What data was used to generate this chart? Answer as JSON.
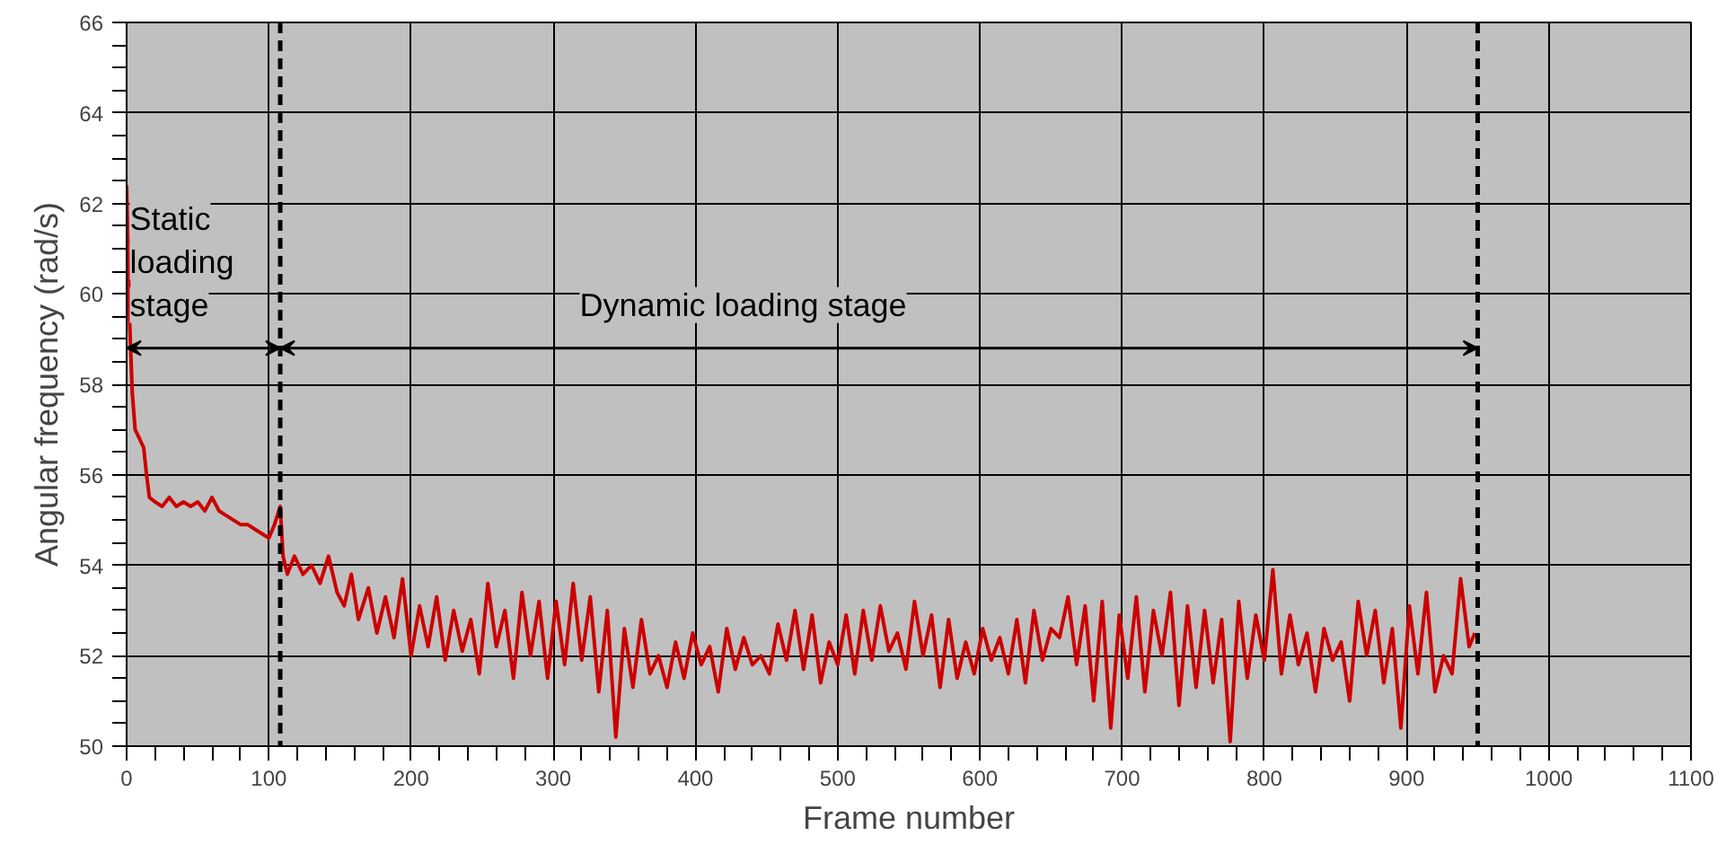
{
  "chart_data": {
    "type": "line",
    "xlabel": "Frame number",
    "ylabel": "Angular frequency (rad/s)",
    "xlim": [
      0,
      1100
    ],
    "ylim": [
      50,
      66
    ],
    "xticks": [
      0,
      100,
      200,
      300,
      400,
      500,
      600,
      700,
      800,
      900,
      1000,
      1100
    ],
    "yticks": [
      50,
      52,
      54,
      56,
      58,
      60,
      62,
      64,
      66
    ],
    "grid": true,
    "marker": "none",
    "line_style": "solid",
    "series": [
      {
        "color": "#cc0000",
        "x": [
          0,
          2,
          4,
          6,
          9,
          12,
          14,
          16,
          20,
          25,
          30,
          35,
          40,
          45,
          50,
          55,
          60,
          65,
          70,
          75,
          80,
          85,
          90,
          95,
          100,
          104,
          108,
          110,
          113,
          118,
          124,
          130,
          136,
          142,
          148,
          153,
          158,
          163,
          170,
          176,
          182,
          188,
          194,
          200,
          206,
          212,
          218,
          224,
          230,
          236,
          242,
          248,
          254,
          260,
          266,
          272,
          278,
          284,
          290,
          296,
          302,
          308,
          314,
          320,
          326,
          332,
          338,
          344,
          350,
          356,
          362,
          368,
          374,
          380,
          386,
          392,
          398,
          404,
          410,
          416,
          422,
          428,
          434,
          440,
          446,
          452,
          458,
          464,
          470,
          476,
          482,
          488,
          494,
          500,
          506,
          512,
          518,
          524,
          530,
          536,
          542,
          548,
          554,
          560,
          566,
          572,
          578,
          584,
          590,
          596,
          602,
          608,
          614,
          620,
          626,
          632,
          638,
          644,
          650,
          656,
          662,
          668,
          674,
          680,
          686,
          692,
          698,
          704,
          710,
          716,
          722,
          728,
          734,
          740,
          746,
          752,
          758,
          764,
          770,
          776,
          782,
          788,
          794,
          800,
          806,
          812,
          818,
          824,
          830,
          836,
          842,
          848,
          854,
          860,
          866,
          872,
          878,
          884,
          890,
          896,
          902,
          908,
          914,
          920,
          926,
          932,
          938,
          944,
          948
        ],
        "values": [
          62.4,
          59.5,
          57.8,
          57.0,
          56.8,
          56.6,
          56.0,
          55.5,
          55.4,
          55.3,
          55.5,
          55.3,
          55.4,
          55.3,
          55.4,
          55.2,
          55.5,
          55.2,
          55.1,
          55.0,
          54.9,
          54.9,
          54.8,
          54.7,
          54.6,
          54.9,
          55.3,
          54.2,
          53.8,
          54.2,
          53.8,
          54.0,
          53.6,
          54.2,
          53.4,
          53.1,
          53.8,
          52.8,
          53.5,
          52.5,
          53.3,
          52.4,
          53.7,
          52.0,
          53.1,
          52.2,
          53.3,
          51.9,
          53.0,
          52.1,
          52.8,
          51.6,
          53.6,
          52.2,
          53.0,
          51.5,
          53.4,
          52.0,
          53.2,
          51.5,
          53.2,
          51.8,
          53.6,
          51.9,
          53.3,
          51.2,
          53.0,
          50.2,
          52.6,
          51.3,
          52.8,
          51.6,
          52.0,
          51.3,
          52.3,
          51.5,
          52.5,
          51.8,
          52.2,
          51.2,
          52.6,
          51.7,
          52.4,
          51.8,
          52.0,
          51.6,
          52.7,
          51.9,
          53.0,
          51.7,
          52.9,
          51.4,
          52.3,
          51.8,
          52.9,
          51.6,
          53.0,
          51.9,
          53.1,
          52.1,
          52.5,
          51.7,
          53.2,
          52.0,
          52.9,
          51.3,
          52.8,
          51.5,
          52.3,
          51.6,
          52.6,
          51.9,
          52.4,
          51.6,
          52.8,
          51.4,
          53.0,
          51.9,
          52.6,
          52.4,
          53.3,
          51.8,
          53.1,
          51.0,
          53.2,
          50.4,
          52.9,
          51.5,
          53.3,
          51.2,
          53.0,
          52.0,
          53.4,
          50.9,
          53.1,
          51.3,
          53.0,
          51.4,
          52.8,
          50.1,
          53.2,
          51.5,
          52.9,
          51.9,
          53.9,
          51.6,
          52.9,
          51.8,
          52.5,
          51.2,
          52.6,
          51.9,
          52.3,
          51.0,
          53.2,
          52.0,
          53.0,
          51.4,
          52.6,
          50.4,
          53.1,
          51.6,
          53.4,
          51.2,
          52.0,
          51.6,
          53.7,
          52.2,
          52.5
        ]
      }
    ],
    "ref_lines": [
      {
        "axis": "x",
        "value": 108,
        "line_style": "dashed",
        "color": "#000000"
      },
      {
        "axis": "x",
        "value": 950,
        "line_style": "dashed",
        "color": "#000000"
      }
    ],
    "annotations": [
      "Static\nloading\nstage",
      "Dynamic loading stage"
    ]
  }
}
